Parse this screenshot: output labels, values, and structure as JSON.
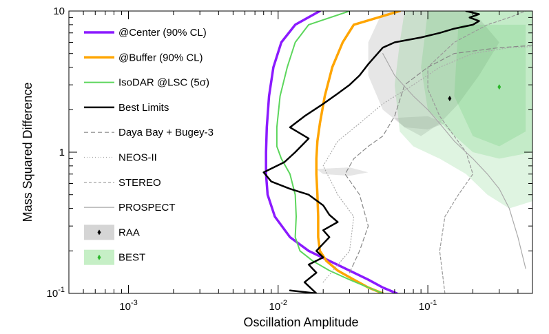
{
  "chart_data": {
    "type": "line",
    "title": "",
    "xlabel": "Oscillation Amplitude",
    "ylabel": "Mass Squared Difference",
    "xscale": "log",
    "yscale": "log",
    "xlim": [
      0.0004,
      0.5
    ],
    "ylim": [
      0.1,
      10
    ],
    "x_ticks": [
      {
        "value": 0.001,
        "base": "10",
        "exp": "-3"
      },
      {
        "value": 0.01,
        "base": "10",
        "exp": "-2"
      },
      {
        "value": 0.1,
        "base": "10",
        "exp": "-1"
      }
    ],
    "y_ticks": [
      {
        "value": 0.1,
        "base": "10",
        "exp": "-1"
      },
      {
        "value": 1,
        "label": "1"
      },
      {
        "value": 10,
        "label": "10"
      }
    ],
    "legend_position": "top-left",
    "regions": [
      {
        "name": "RAA",
        "color": "#9a9a9a",
        "alpha": 0.25,
        "polygons": [
          [
            [
              0.05,
              10
            ],
            [
              0.2,
              10
            ],
            [
              0.3,
              6
            ],
            [
              0.22,
              3.5
            ],
            [
              0.16,
              2.2
            ],
            [
              0.12,
              1.6
            ],
            [
              0.09,
              1.3
            ],
            [
              0.07,
              1.5
            ],
            [
              0.05,
              2.0
            ],
            [
              0.04,
              3.5
            ],
            [
              0.04,
              6
            ]
          ],
          [
            [
              0.06,
              1.75
            ],
            [
              0.1,
              1.8
            ],
            [
              0.13,
              1.6
            ],
            [
              0.1,
              1.45
            ],
            [
              0.07,
              1.5
            ]
          ],
          [
            [
              0.018,
              0.76
            ],
            [
              0.03,
              0.78
            ],
            [
              0.04,
              0.72
            ],
            [
              0.03,
              0.68
            ],
            [
              0.02,
              0.7
            ]
          ]
        ],
        "best_fit": [
          0.14,
          2.4
        ]
      },
      {
        "name": "BEST",
        "color": "#4fc35a",
        "alpha": 0.18,
        "polygons": [
          [
            [
              0.07,
              10
            ],
            [
              0.5,
              10
            ],
            [
              0.5,
              0.45
            ],
            [
              0.35,
              0.4
            ],
            [
              0.25,
              0.5
            ],
            [
              0.18,
              0.7
            ],
            [
              0.12,
              0.9
            ],
            [
              0.08,
              1.1
            ],
            [
              0.065,
              1.4
            ],
            [
              0.06,
              3
            ],
            [
              0.065,
              6
            ]
          ],
          [
            [
              0.1,
              10
            ],
            [
              0.5,
              10
            ],
            [
              0.5,
              1.0
            ],
            [
              0.3,
              0.9
            ],
            [
              0.2,
              1.0
            ],
            [
              0.14,
              1.4
            ],
            [
              0.1,
              2.0
            ],
            [
              0.09,
              4
            ]
          ],
          [
            [
              0.16,
              8
            ],
            [
              0.45,
              8
            ],
            [
              0.45,
              1.4
            ],
            [
              0.3,
              1.1
            ],
            [
              0.2,
              1.3
            ],
            [
              0.15,
              2.5
            ]
          ]
        ],
        "best_fit": [
          0.3,
          2.9
        ]
      }
    ],
    "series": [
      {
        "name": "@Center (90% CL)",
        "color": "#8b1aff",
        "width": 3.5,
        "dash": "solid",
        "points": [
          [
            0.062,
            0.1
          ],
          [
            0.05,
            0.11
          ],
          [
            0.04,
            0.125
          ],
          [
            0.03,
            0.145
          ],
          [
            0.022,
            0.17
          ],
          [
            0.016,
            0.2
          ],
          [
            0.012,
            0.25
          ],
          [
            0.0095,
            0.35
          ],
          [
            0.0085,
            0.5
          ],
          [
            0.0083,
            0.7
          ],
          [
            0.0083,
            1.0
          ],
          [
            0.0084,
            1.5
          ],
          [
            0.0087,
            2.5
          ],
          [
            0.0093,
            4
          ],
          [
            0.0105,
            6
          ],
          [
            0.013,
            8
          ],
          [
            0.019,
            10
          ]
        ]
      },
      {
        "name": "@Buffer (90% CL)",
        "color": "#ffa500",
        "width": 3.5,
        "dash": "solid",
        "points": [
          [
            0.05,
            0.1
          ],
          [
            0.04,
            0.11
          ],
          [
            0.032,
            0.125
          ],
          [
            0.025,
            0.145
          ],
          [
            0.021,
            0.17
          ],
          [
            0.019,
            0.2
          ],
          [
            0.0185,
            0.25
          ],
          [
            0.0185,
            0.35
          ],
          [
            0.0183,
            0.5
          ],
          [
            0.018,
            0.7
          ],
          [
            0.018,
            0.9
          ],
          [
            0.0183,
            1.2
          ],
          [
            0.019,
            1.6
          ],
          [
            0.0205,
            2.5
          ],
          [
            0.023,
            4
          ],
          [
            0.027,
            6
          ],
          [
            0.032,
            8
          ],
          [
            0.065,
            10
          ]
        ]
      },
      {
        "name": "IsoDAR @LSC (5σ)",
        "color": "#5cd65c",
        "width": 2,
        "dash": "solid",
        "points": [
          [
            0.05,
            0.1
          ],
          [
            0.04,
            0.11
          ],
          [
            0.03,
            0.125
          ],
          [
            0.022,
            0.145
          ],
          [
            0.017,
            0.17
          ],
          [
            0.014,
            0.2
          ],
          [
            0.013,
            0.25
          ],
          [
            0.0132,
            0.35
          ],
          [
            0.013,
            0.5
          ],
          [
            0.012,
            0.7
          ],
          [
            0.0105,
            0.9
          ],
          [
            0.0098,
            1.1
          ],
          [
            0.0098,
            1.5
          ],
          [
            0.0103,
            2.5
          ],
          [
            0.0115,
            4
          ],
          [
            0.013,
            6
          ],
          [
            0.016,
            8
          ],
          [
            0.03,
            10
          ]
        ]
      },
      {
        "name": "Best Limits",
        "color": "#000000",
        "width": 2.5,
        "dash": "solid",
        "points": [
          [
            0.012,
            0.105
          ],
          [
            0.018,
            0.1
          ],
          [
            0.015,
            0.12
          ],
          [
            0.018,
            0.14
          ],
          [
            0.016,
            0.16
          ],
          [
            0.02,
            0.18
          ],
          [
            0.018,
            0.2
          ],
          [
            0.022,
            0.25
          ],
          [
            0.02,
            0.28
          ],
          [
            0.025,
            0.32
          ],
          [
            0.022,
            0.36
          ],
          [
            0.02,
            0.42
          ],
          [
            0.016,
            0.5
          ],
          [
            0.012,
            0.55
          ],
          [
            0.009,
            0.62
          ],
          [
            0.008,
            0.72
          ],
          [
            0.011,
            0.85
          ],
          [
            0.013,
            1.0
          ],
          [
            0.016,
            1.25
          ],
          [
            0.012,
            1.5
          ],
          [
            0.015,
            1.8
          ],
          [
            0.02,
            2.2
          ],
          [
            0.025,
            2.6
          ],
          [
            0.03,
            3.0
          ],
          [
            0.035,
            3.5
          ],
          [
            0.04,
            4.2
          ],
          [
            0.05,
            5.5
          ],
          [
            0.06,
            6
          ],
          [
            0.09,
            6.5
          ],
          [
            0.12,
            7
          ],
          [
            0.15,
            7.5
          ],
          [
            0.2,
            8
          ],
          [
            0.22,
            8.5
          ],
          [
            0.19,
            9
          ],
          [
            0.22,
            9.5
          ],
          [
            0.18,
            10
          ]
        ]
      },
      {
        "name": "Daya Bay + Bugey-3",
        "color": "#888888",
        "width": 1.2,
        "dash": "6,4",
        "points": [
          [
            0.03,
            0.14
          ],
          [
            0.035,
            0.2
          ],
          [
            0.04,
            0.3
          ],
          [
            0.035,
            0.5
          ],
          [
            0.028,
            0.7
          ],
          [
            0.032,
            0.9
          ],
          [
            0.04,
            1.1
          ],
          [
            0.05,
            1.3
          ],
          [
            0.06,
            1.8
          ],
          [
            0.07,
            3
          ],
          [
            0.1,
            4
          ],
          [
            0.15,
            5
          ],
          [
            0.3,
            5.5
          ],
          [
            0.5,
            5.7
          ]
        ]
      },
      {
        "name": "NEOS-II",
        "color": "#aaaaaa",
        "width": 1.2,
        "dash": "1,3",
        "points": [
          [
            0.02,
            0.12
          ],
          [
            0.03,
            0.2
          ],
          [
            0.032,
            0.35
          ],
          [
            0.025,
            0.5
          ],
          [
            0.02,
            0.8
          ],
          [
            0.025,
            1.2
          ],
          [
            0.035,
            1.6
          ],
          [
            0.05,
            2.2
          ],
          [
            0.08,
            3
          ],
          [
            0.12,
            4
          ],
          [
            0.2,
            5
          ],
          [
            0.35,
            5.5
          ],
          [
            0.5,
            5.6
          ]
        ]
      },
      {
        "name": "STEREO",
        "color": "#999999",
        "width": 1.2,
        "dash": "4,3",
        "points": [
          [
            0.13,
            0.1
          ],
          [
            0.12,
            0.2
          ],
          [
            0.13,
            0.35
          ],
          [
            0.16,
            0.5
          ],
          [
            0.2,
            0.7
          ],
          [
            0.18,
            1.0
          ],
          [
            0.15,
            1.3
          ],
          [
            0.12,
            1.8
          ],
          [
            0.1,
            2.8
          ],
          [
            0.1,
            4
          ],
          [
            0.15,
            6
          ],
          [
            0.25,
            8
          ],
          [
            0.35,
            9
          ],
          [
            0.45,
            10
          ]
        ]
      },
      {
        "name": "PROSPECT",
        "color": "#aaaaaa",
        "width": 1.2,
        "dash": "solid",
        "points": [
          [
            0.45,
            0.15
          ],
          [
            0.4,
            0.25
          ],
          [
            0.35,
            0.4
          ],
          [
            0.3,
            0.55
          ],
          [
            0.25,
            0.7
          ],
          [
            0.2,
            0.9
          ],
          [
            0.15,
            1.2
          ],
          [
            0.12,
            1.6
          ],
          [
            0.1,
            2.0
          ],
          [
            0.08,
            2.5
          ],
          [
            0.06,
            3.5
          ],
          [
            0.05,
            5
          ]
        ]
      }
    ],
    "legend": [
      {
        "label": "@Center (90% CL)",
        "kind": "line",
        "color": "#8b1aff",
        "width": 3.5,
        "dash": "solid"
      },
      {
        "label": "@Buffer (90% CL)",
        "kind": "line",
        "color": "#ffa500",
        "width": 3.5,
        "dash": "solid"
      },
      {
        "label": "IsoDAR @LSC (5σ)",
        "kind": "line",
        "color": "#5cd65c",
        "width": 2,
        "dash": "solid"
      },
      {
        "label": "Best Limits",
        "kind": "line",
        "color": "#000000",
        "width": 2.5,
        "dash": "solid"
      },
      {
        "label": "Daya Bay + Bugey-3",
        "kind": "line",
        "color": "#888888",
        "width": 1.2,
        "dash": "6,4"
      },
      {
        "label": "NEOS-II",
        "kind": "line",
        "color": "#aaaaaa",
        "width": 1.2,
        "dash": "1,3"
      },
      {
        "label": "STEREO",
        "kind": "line",
        "color": "#999999",
        "width": 1.2,
        "dash": "4,3"
      },
      {
        "label": "PROSPECT",
        "kind": "line",
        "color": "#aaaaaa",
        "width": 1.2,
        "dash": "solid"
      },
      {
        "label": "RAA",
        "kind": "box",
        "color": "#d5d5d5",
        "marker": "#000000"
      },
      {
        "label": "BEST",
        "kind": "box",
        "color": "#c6efc6",
        "marker": "#2ab82a"
      }
    ]
  }
}
